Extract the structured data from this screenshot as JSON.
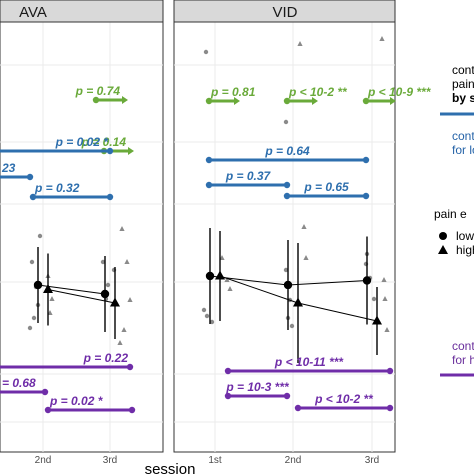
{
  "chart_data": {
    "type": "scatter",
    "x_label": "session",
    "legend_title": "pain e",
    "legend_items": [
      "low",
      "high"
    ],
    "annotations_right": [
      {
        "text": "contr",
        "color": "#2f2f2f"
      },
      {
        "text": "pain",
        "color": "#2f2f2f"
      },
      {
        "text": "by se",
        "color": "#2f2f2f"
      },
      {
        "text": "contr",
        "color": "#2563a8"
      },
      {
        "text": "for lo",
        "color": "#2563a8"
      },
      {
        "text": "contr",
        "color": "#6a2f9c"
      },
      {
        "text": "for h",
        "color": "#6a2f9c"
      }
    ],
    "panels": [
      {
        "title": "AVA",
        "x_ticks": [
          "2nd",
          "3rd"
        ],
        "series": [
          {
            "name": "low",
            "shape": "circle",
            "means": [
              {
                "x": "2nd",
                "y": 0
              },
              {
                "x": "3rd",
                "y": -0.1
              }
            ]
          },
          {
            "name": "high",
            "shape": "triangle",
            "means": [
              {
                "x": "2nd",
                "y": -0.05
              },
              {
                "x": "3rd",
                "y": -0.2
              }
            ]
          }
        ],
        "comparisons": [
          {
            "group": "by session",
            "color": "#6aaa3a",
            "label": "p = 0.74"
          },
          {
            "group": "by session",
            "color": "#6aaa3a",
            "label": "p = 0.14"
          },
          {
            "group": "low",
            "color": "#2e6fae",
            "label": "p = 0.02 *"
          },
          {
            "group": "low",
            "color": "#2e6fae",
            "label": "23"
          },
          {
            "group": "low",
            "color": "#2e6fae",
            "label": "p = 0.32"
          },
          {
            "group": "high",
            "color": "#6f2da8",
            "label": "p = 0.22"
          },
          {
            "group": "high",
            "color": "#6f2da8",
            "label": "= 0.68"
          },
          {
            "group": "high",
            "color": "#6f2da8",
            "label": "p = 0.02 *"
          }
        ]
      },
      {
        "title": "VID",
        "x_ticks": [
          "1st",
          "2nd",
          "3rd"
        ],
        "series": [
          {
            "name": "low",
            "shape": "circle",
            "means": [
              {
                "x": "1st",
                "y": 0.1
              },
              {
                "x": "2nd",
                "y": 0
              },
              {
                "x": "3rd",
                "y": 0.05
              }
            ]
          },
          {
            "name": "high",
            "shape": "triangle",
            "means": [
              {
                "x": "1st",
                "y": 0.1
              },
              {
                "x": "2nd",
                "y": -0.2
              },
              {
                "x": "3rd",
                "y": -0.4
              }
            ]
          }
        ],
        "comparisons": [
          {
            "group": "by session",
            "color": "#6aaa3a",
            "label": "p = 0.81"
          },
          {
            "group": "by session",
            "color": "#6aaa3a",
            "label": "p < 10-2 **"
          },
          {
            "group": "by session",
            "color": "#6aaa3a",
            "label": "p < 10-9 ***"
          },
          {
            "group": "low",
            "color": "#2e6fae",
            "label": "p = 0.64"
          },
          {
            "group": "low",
            "color": "#2e6fae",
            "label": "p = 0.37"
          },
          {
            "group": "low",
            "color": "#2e6fae",
            "label": "p = 0.65"
          },
          {
            "group": "high",
            "color": "#6f2da8",
            "label": "p < 10-11 ***"
          },
          {
            "group": "high",
            "color": "#6f2da8",
            "label": "p = 10-3 ***"
          },
          {
            "group": "high",
            "color": "#6f2da8",
            "label": "p < 10-2 **"
          }
        ]
      }
    ]
  }
}
